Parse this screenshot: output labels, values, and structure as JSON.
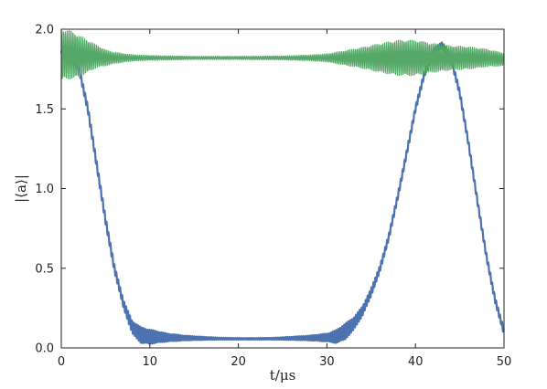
{
  "chart_data": {
    "type": "line",
    "xlabel": "t/μs",
    "ylabel": "|⟨a⟩|",
    "xlim": [
      0,
      50
    ],
    "ylim": [
      0,
      2.0
    ],
    "x_ticks": [
      "0",
      "10",
      "20",
      "30",
      "40",
      "50"
    ],
    "x_tick_values": [
      0,
      10,
      20,
      30,
      40,
      50
    ],
    "y_ticks": [
      "0.0",
      "0.5",
      "1.0",
      "1.5",
      "2.0"
    ],
    "y_tick_values": [
      0.0,
      0.5,
      1.0,
      1.5,
      2.0
    ],
    "grid": false,
    "legend": "none",
    "series": [
      {
        "color": "#4c72b0",
        "x": [
          0,
          1,
          2,
          3,
          4,
          5,
          6,
          7,
          8,
          9,
          10,
          11,
          12,
          14,
          16,
          18,
          20,
          22,
          24,
          26,
          28,
          30,
          31,
          32,
          33,
          34,
          35,
          36,
          37,
          38,
          39,
          40,
          41,
          42,
          43,
          44,
          45,
          46,
          47,
          48,
          49,
          50
        ],
        "y": [
          1.85,
          1.83,
          1.75,
          1.5,
          1.15,
          0.8,
          0.5,
          0.28,
          0.13,
          0.08,
          0.07,
          0.068,
          0.065,
          0.062,
          0.06,
          0.058,
          0.057,
          0.057,
          0.058,
          0.06,
          0.062,
          0.065,
          0.07,
          0.1,
          0.15,
          0.23,
          0.35,
          0.5,
          0.7,
          0.95,
          1.22,
          1.5,
          1.72,
          1.86,
          1.9,
          1.82,
          1.6,
          1.28,
          0.92,
          0.58,
          0.3,
          0.1
        ],
        "osc_amp": [
          0.02,
          0.02,
          0.02,
          0.025,
          0.025,
          0.025,
          0.025,
          0.025,
          0.04,
          0.05,
          0.045,
          0.035,
          0.025,
          0.015,
          0.01,
          0.006,
          0.005,
          0.005,
          0.006,
          0.01,
          0.015,
          0.025,
          0.04,
          0.05,
          0.04,
          0.03,
          0.025,
          0.02,
          0.02,
          0.02,
          0.02,
          0.02,
          0.02,
          0.02,
          0.02,
          0.02,
          0.02,
          0.02,
          0.02,
          0.02,
          0.02,
          0.02
        ]
      },
      {
        "color": "#55a868",
        "x": [
          0,
          1,
          2,
          3,
          4,
          5,
          6,
          8,
          10,
          15,
          20,
          25,
          28,
          30,
          32,
          34,
          36,
          38,
          40,
          42,
          44,
          46,
          48,
          50
        ],
        "y": [
          1.84,
          1.84,
          1.83,
          1.83,
          1.83,
          1.82,
          1.82,
          1.82,
          1.82,
          1.82,
          1.82,
          1.82,
          1.82,
          1.82,
          1.82,
          1.82,
          1.82,
          1.82,
          1.82,
          1.82,
          1.82,
          1.82,
          1.82,
          1.81
        ],
        "osc_amp": [
          0.16,
          0.15,
          0.13,
          0.1,
          0.07,
          0.05,
          0.035,
          0.02,
          0.015,
          0.01,
          0.01,
          0.012,
          0.018,
          0.025,
          0.045,
          0.065,
          0.09,
          0.11,
          0.11,
          0.09,
          0.075,
          0.07,
          0.055,
          0.04
        ]
      }
    ]
  }
}
